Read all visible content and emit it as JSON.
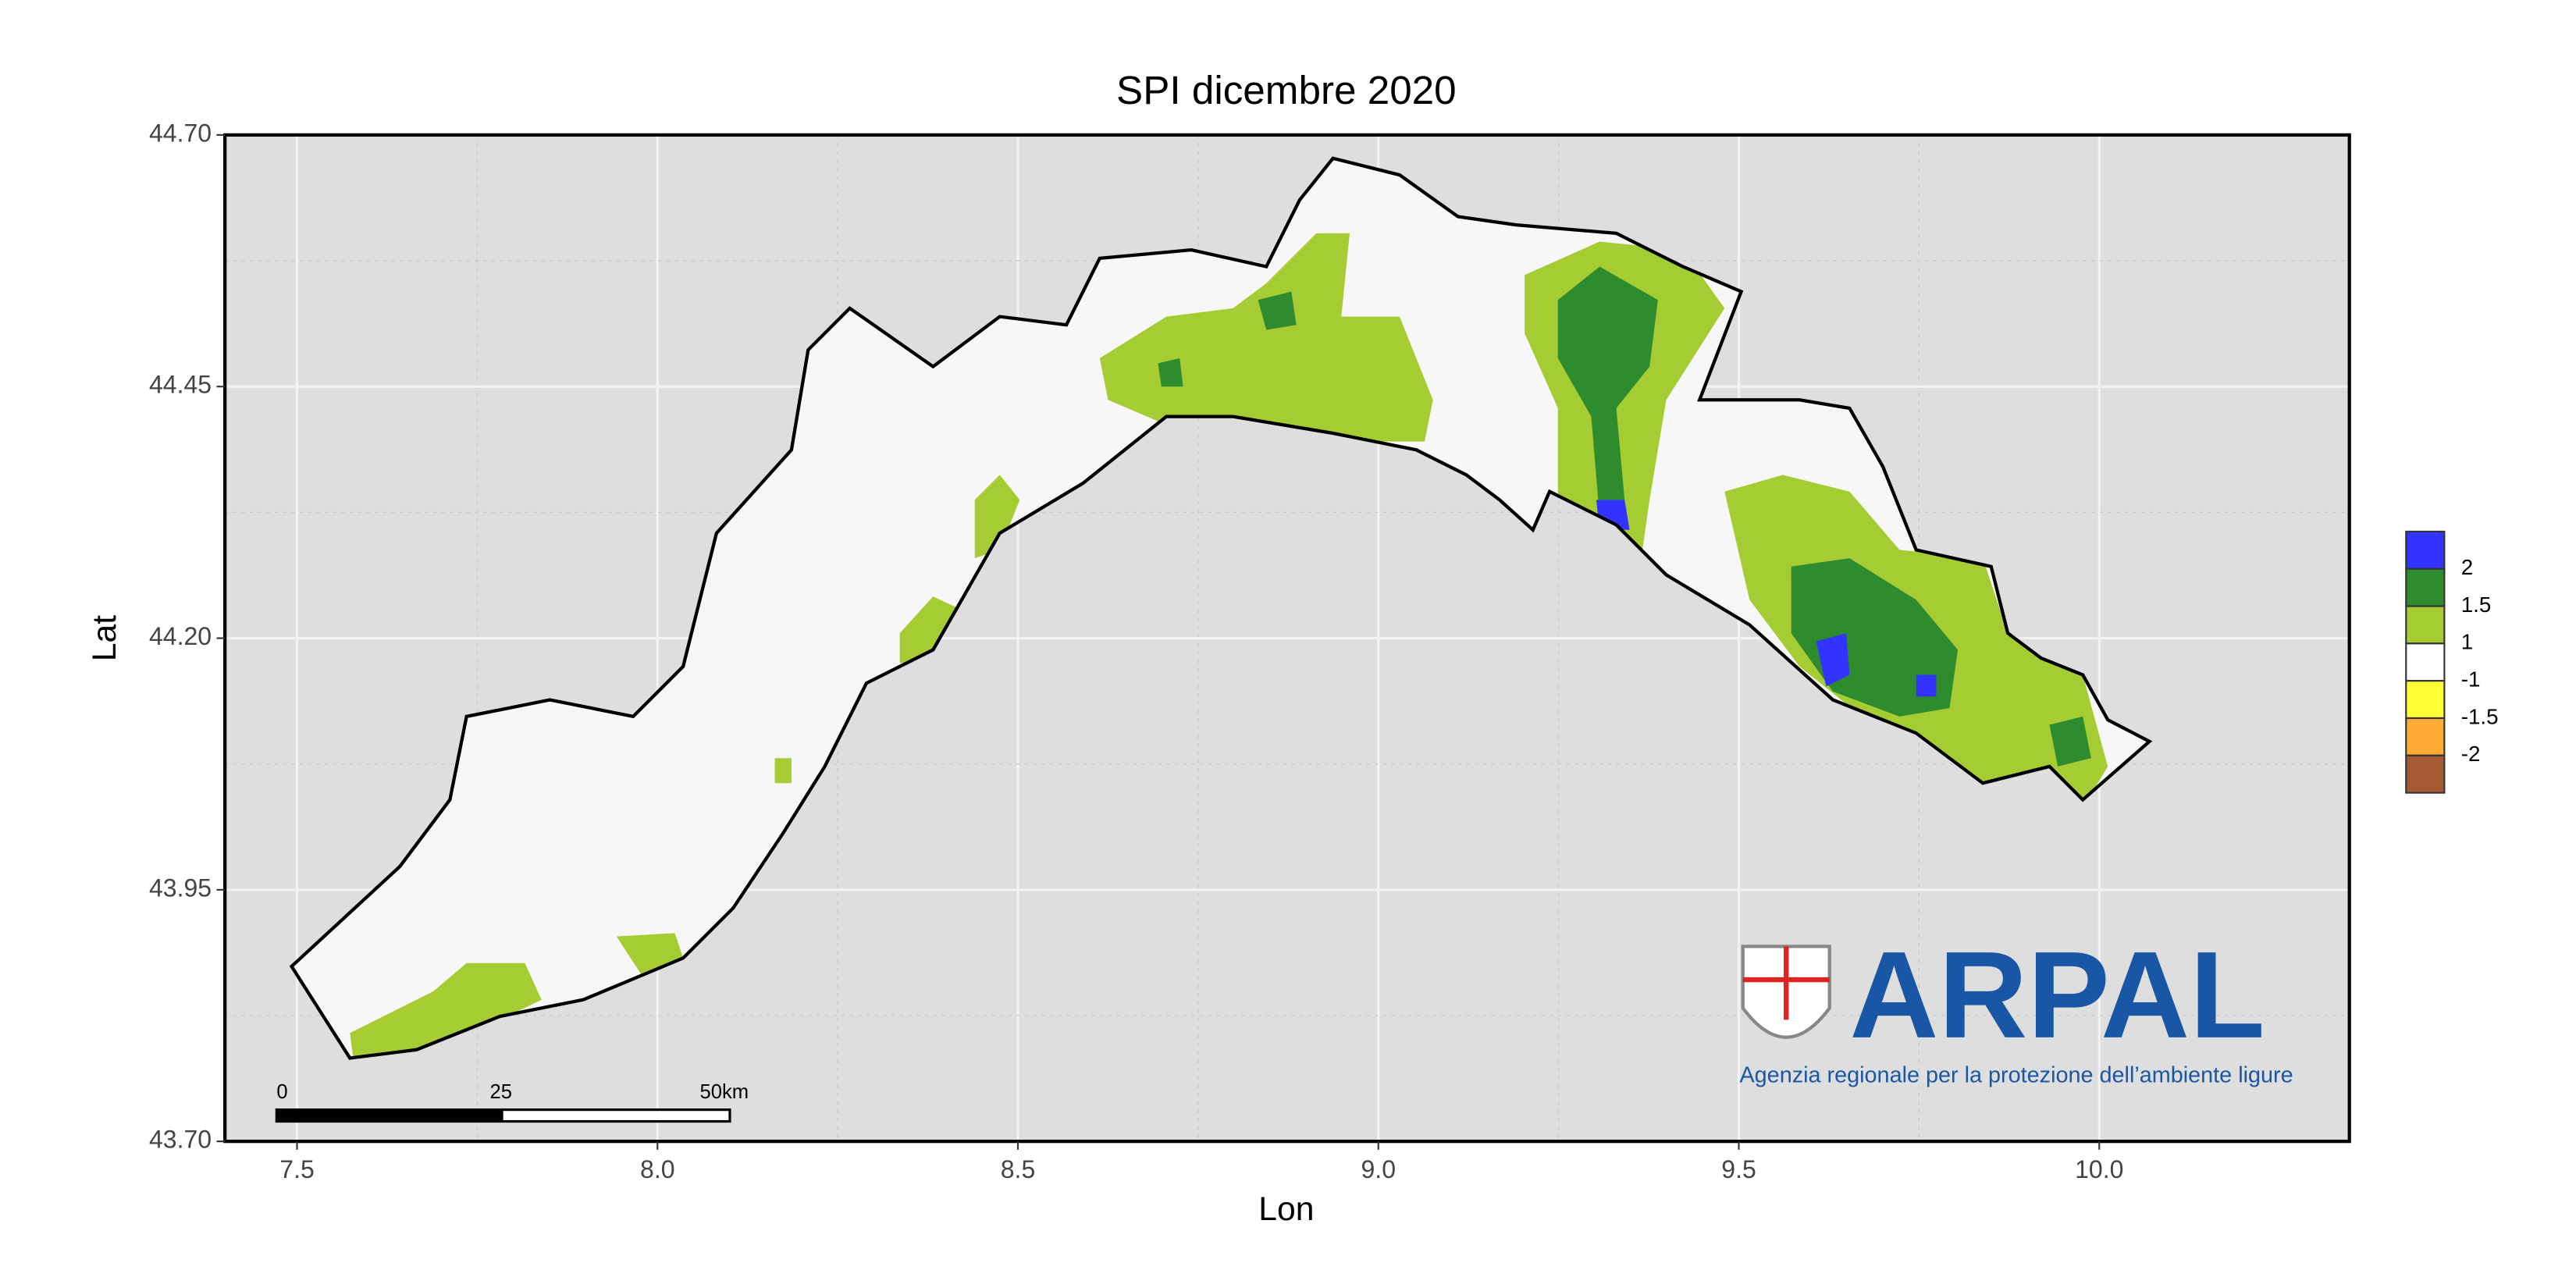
{
  "chart_data": {
    "type": "map",
    "title": "SPI dicembre 2020",
    "x_label": "Lon",
    "y_label": "Lat",
    "xlim": [
      7.4,
      10.347
    ],
    "ylim": [
      43.7,
      44.7
    ],
    "xticks": [
      7.5,
      {
        "value": 8,
        "label": "8.0"
      },
      8.5,
      {
        "value": 9,
        "label": "9.0"
      },
      9.5,
      {
        "value": 10,
        "label": "10.0"
      }
    ],
    "yticks": [
      {
        "value": 43.7,
        "label": "43.70"
      },
      43.95,
      {
        "value": 44.2,
        "label": "44.20"
      },
      44.45,
      {
        "value": 44.7,
        "label": "44.70"
      }
    ],
    "grid": true,
    "legend": {
      "colors": [
        "#3333ff",
        "#2e8b2e",
        "#a6cc33",
        "#ffffff",
        "#ffff33",
        "#ffaa33",
        "#a65a33"
      ],
      "labels": [
        "2",
        "1.5",
        "1",
        "-1",
        "-1.5",
        "-2"
      ]
    },
    "scale_bar": {
      "labels": [
        "0",
        "25",
        "50km"
      ]
    },
    "logo": {
      "name": "ARPAL",
      "subtitle": "Agenzia regionale per la protezione dell’ambiente ligure"
    }
  }
}
